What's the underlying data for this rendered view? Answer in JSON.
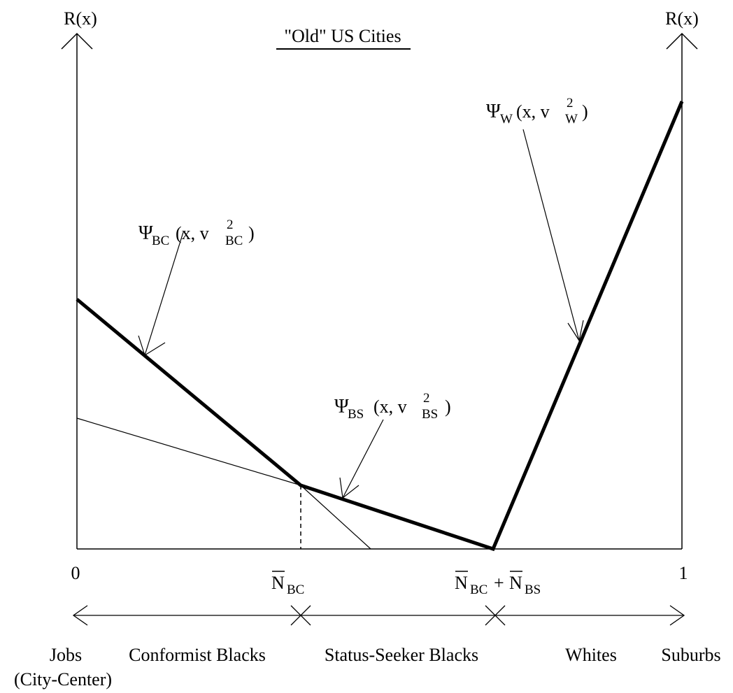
{
  "title": "\"Old\" US Cities",
  "y_axis": {
    "left_label": "R(x)",
    "right_label": "R(x)"
  },
  "x_ticks": {
    "zero": "0",
    "one": "1",
    "n_bc": {
      "main": "N",
      "sub": "BC"
    },
    "n_bc_bs": {
      "n1": "N",
      "sub1": "BC",
      "plus": "+",
      "n2": "N",
      "sub2": "BS"
    }
  },
  "curves": {
    "bc": {
      "psi": "Ψ",
      "sub": "BC",
      "args_open": "(x, v",
      "sup": "2",
      "v_sub": "BC",
      "close": ")"
    },
    "bs": {
      "psi": "Ψ",
      "sub": "BS",
      "args_open": "(x, v",
      "sup": "2",
      "v_sub": "BS",
      "close": ")"
    },
    "w": {
      "psi": "Ψ",
      "sub": "W",
      "args_open": "(x, v",
      "sup": "2",
      "v_sub": "W",
      "close": ")"
    }
  },
  "regions": {
    "jobs": "Jobs",
    "city_center": "(City-Center)",
    "conformist": "Conformist Blacks",
    "status_seeker": "Status-Seeker Blacks",
    "whites": "Whites",
    "suburbs": "Suburbs"
  }
}
